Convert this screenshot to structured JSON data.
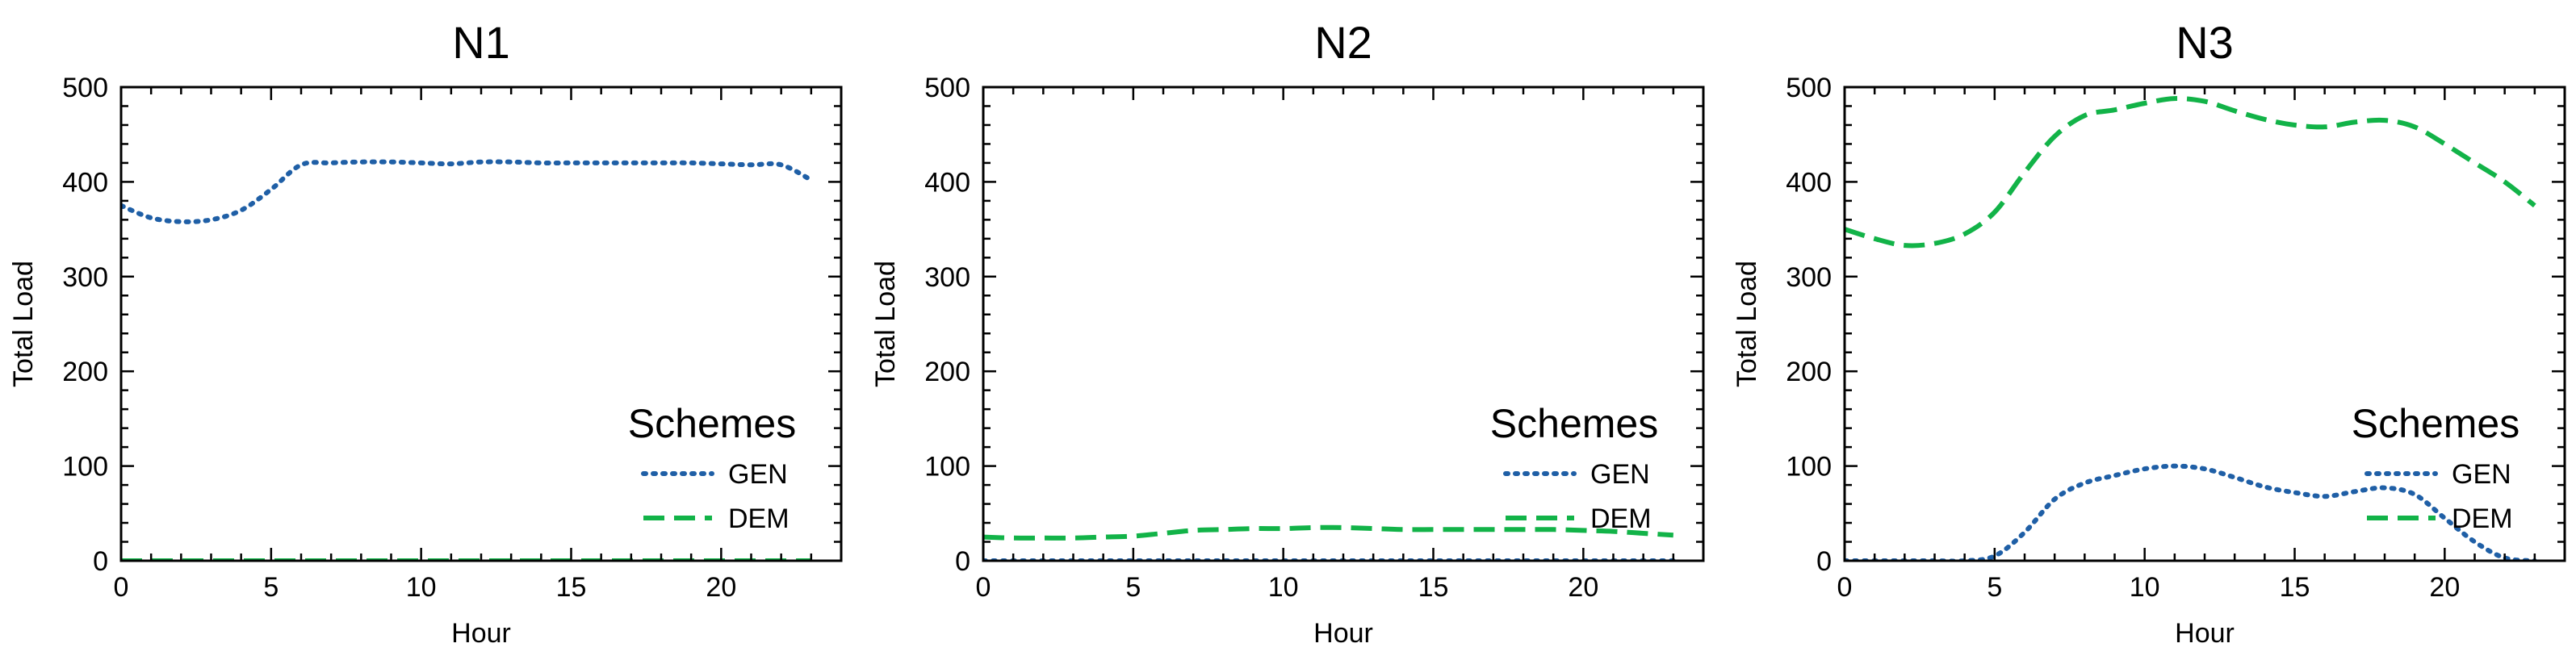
{
  "chart_data": [
    {
      "type": "line",
      "title": "N1",
      "xlabel": "Hour",
      "ylabel": "Total Load",
      "xlim": [
        0,
        24
      ],
      "ylim": [
        0,
        500
      ],
      "xticks": [
        0,
        5,
        10,
        15,
        20
      ],
      "yticks": [
        0,
        100,
        200,
        300,
        400,
        500
      ],
      "grid": false,
      "legend": {
        "title": "Schemes",
        "placement": "lower-right"
      },
      "x": [
        0,
        1,
        2,
        3,
        4,
        5,
        6,
        7,
        8,
        9,
        10,
        11,
        12,
        13,
        14,
        15,
        16,
        17,
        18,
        19,
        20,
        21,
        22,
        23
      ],
      "series": [
        {
          "name": "GEN",
          "color": "#1f5fa6",
          "style": "dotted",
          "values": [
            375,
            362,
            358,
            360,
            370,
            392,
            418,
            420,
            421,
            421,
            420,
            419,
            421,
            421,
            420,
            420,
            420,
            420,
            420,
            420,
            419,
            418,
            418,
            402
          ]
        },
        {
          "name": "DEM",
          "color": "#12b348",
          "style": "dashed",
          "values": [
            0,
            0,
            0,
            0,
            0,
            0,
            0,
            0,
            0,
            0,
            0,
            0,
            0,
            0,
            0,
            0,
            0,
            0,
            0,
            0,
            0,
            0,
            0,
            0
          ]
        }
      ]
    },
    {
      "type": "line",
      "title": "N2",
      "xlabel": "Hour",
      "ylabel": "Total Load",
      "xlim": [
        0,
        24
      ],
      "ylim": [
        0,
        500
      ],
      "xticks": [
        0,
        5,
        10,
        15,
        20
      ],
      "yticks": [
        0,
        100,
        200,
        300,
        400,
        500
      ],
      "grid": false,
      "legend": {
        "title": "Schemes",
        "placement": "lower-right"
      },
      "x": [
        0,
        1,
        2,
        3,
        4,
        5,
        6,
        7,
        8,
        9,
        10,
        11,
        12,
        13,
        14,
        15,
        16,
        17,
        18,
        19,
        20,
        21,
        22,
        23
      ],
      "series": [
        {
          "name": "GEN",
          "color": "#1f5fa6",
          "style": "dotted",
          "values": [
            0,
            0,
            0,
            0,
            0,
            0,
            0,
            0,
            0,
            0,
            0,
            0,
            0,
            0,
            0,
            0,
            0,
            0,
            0,
            0,
            0,
            0,
            0,
            0
          ]
        },
        {
          "name": "DEM",
          "color": "#12b348",
          "style": "dashed",
          "values": [
            25,
            24,
            24,
            24,
            25,
            26,
            29,
            32,
            33,
            34,
            34,
            35,
            35,
            34,
            33,
            33,
            33,
            33,
            33,
            33,
            32,
            31,
            29,
            27
          ]
        }
      ]
    },
    {
      "type": "line",
      "title": "N3",
      "xlabel": "Hour",
      "ylabel": "Total Load",
      "xlim": [
        0,
        24
      ],
      "ylim": [
        0,
        500
      ],
      "xticks": [
        0,
        5,
        10,
        15,
        20
      ],
      "yticks": [
        0,
        100,
        200,
        300,
        400,
        500
      ],
      "grid": false,
      "legend": {
        "title": "Schemes",
        "placement": "lower-right"
      },
      "x": [
        0,
        1,
        2,
        3,
        4,
        5,
        6,
        7,
        8,
        9,
        10,
        11,
        12,
        13,
        14,
        15,
        16,
        17,
        18,
        19,
        20,
        21,
        22,
        23
      ],
      "series": [
        {
          "name": "GEN",
          "color": "#1f5fa6",
          "style": "dotted",
          "values": [
            0,
            0,
            0,
            0,
            0,
            5,
            30,
            65,
            82,
            90,
            97,
            100,
            97,
            88,
            78,
            72,
            68,
            73,
            77,
            70,
            45,
            20,
            3,
            0
          ]
        },
        {
          "name": "DEM",
          "color": "#12b348",
          "style": "dashed",
          "values": [
            350,
            340,
            333,
            335,
            345,
            368,
            410,
            448,
            470,
            476,
            483,
            488,
            485,
            475,
            466,
            460,
            458,
            463,
            465,
            458,
            440,
            420,
            400,
            375
          ]
        }
      ]
    }
  ]
}
